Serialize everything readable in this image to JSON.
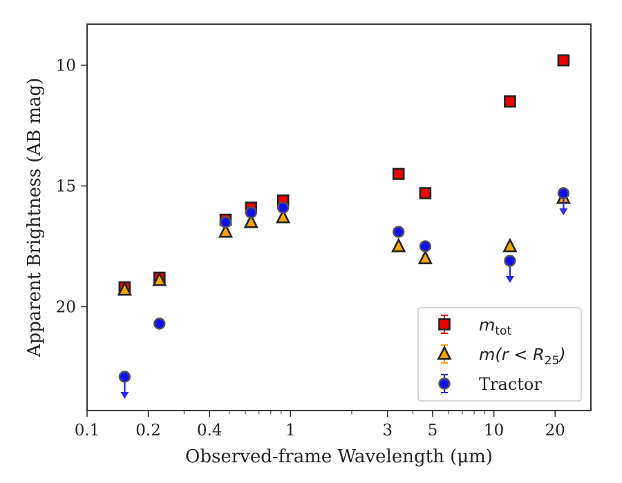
{
  "chart_data": {
    "type": "scatter",
    "xlabel": "Observed-frame Wavelength (μm)",
    "ylabel": "Apparent Brightness (AB mag)",
    "xscale": "log",
    "xlim": [
      0.1,
      30
    ],
    "ylim": [
      24.3,
      8.3
    ],
    "y_inverted": true,
    "x_ticks": [
      0.1,
      0.2,
      0.4,
      1,
      3,
      5,
      10,
      20
    ],
    "x_tick_labels": [
      "0.1",
      "0.2",
      "0.4",
      "1",
      "3",
      "5",
      "10",
      "20"
    ],
    "y_ticks": [
      10,
      15,
      20
    ],
    "y_tick_labels": [
      "10",
      "15",
      "20"
    ],
    "legend": {
      "position": "lower-right"
    },
    "series": [
      {
        "name": "m_tot",
        "legend_main": "m",
        "legend_sub": "tot",
        "marker": "square",
        "color": "#ee0000",
        "errcolor": "#dd0000",
        "points": [
          {
            "x": 0.153,
            "y": 19.2
          },
          {
            "x": 0.227,
            "y": 18.8
          },
          {
            "x": 0.48,
            "y": 16.4
          },
          {
            "x": 0.64,
            "y": 15.9
          },
          {
            "x": 0.92,
            "y": 15.6
          },
          {
            "x": 3.4,
            "y": 14.5
          },
          {
            "x": 4.6,
            "y": 15.3
          },
          {
            "x": 12.0,
            "y": 11.5
          },
          {
            "x": 22.0,
            "y": 9.8
          }
        ]
      },
      {
        "name": "m(r < R_25)",
        "legend_main": "m(r < R",
        "legend_sub": "25",
        "legend_tail": ")",
        "marker": "triangle",
        "color": "#ffa500",
        "errcolor": "#f0a000",
        "points": [
          {
            "x": 0.153,
            "y": 19.3
          },
          {
            "x": 0.227,
            "y": 18.9
          },
          {
            "x": 0.48,
            "y": 16.9
          },
          {
            "x": 0.64,
            "y": 16.5
          },
          {
            "x": 0.92,
            "y": 16.3
          },
          {
            "x": 3.4,
            "y": 17.5
          },
          {
            "x": 4.6,
            "y": 18.0
          },
          {
            "x": 12.0,
            "y": 17.5
          },
          {
            "x": 22.0,
            "y": 15.5
          }
        ]
      },
      {
        "name": "Tractor",
        "marker": "circle",
        "color": "#1010ee",
        "errcolor": "#2a2aee",
        "points": [
          {
            "x": 0.153,
            "y": 22.9,
            "upper_limit": true
          },
          {
            "x": 0.227,
            "y": 20.7
          },
          {
            "x": 0.48,
            "y": 16.5
          },
          {
            "x": 0.64,
            "y": 16.1
          },
          {
            "x": 0.92,
            "y": 15.9
          },
          {
            "x": 3.4,
            "y": 16.9
          },
          {
            "x": 4.6,
            "y": 17.5
          },
          {
            "x": 12.0,
            "y": 18.1,
            "upper_limit": true
          },
          {
            "x": 22.0,
            "y": 15.3,
            "upper_limit": true
          }
        ]
      }
    ]
  }
}
